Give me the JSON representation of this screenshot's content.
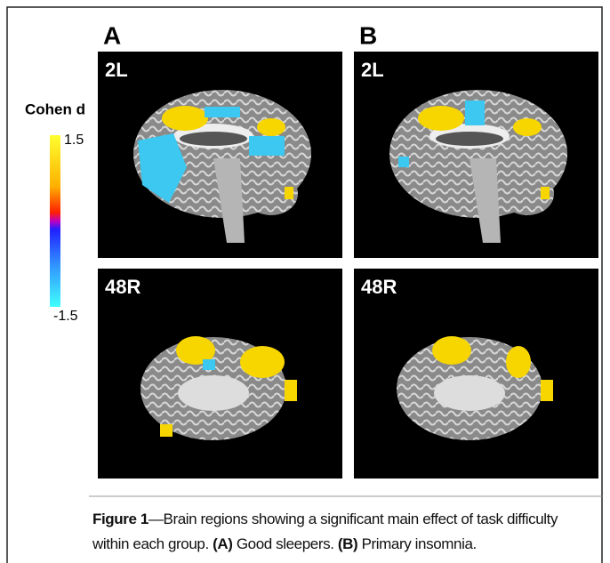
{
  "panels": [
    {
      "letter": "A",
      "views": [
        "2L",
        "48R"
      ]
    },
    {
      "letter": "B",
      "views": [
        "2L",
        "48R"
      ]
    }
  ],
  "colorbar": {
    "title": "Cohen d",
    "max": 1.5,
    "min": -1.5
  },
  "caption": [
    "Figure 1",
    "—Brain regions showing a significant main effect of task difficulty within each group. ",
    "(A)",
    " Good sleepers. ",
    "(B)",
    " Primary insomnia."
  ]
}
